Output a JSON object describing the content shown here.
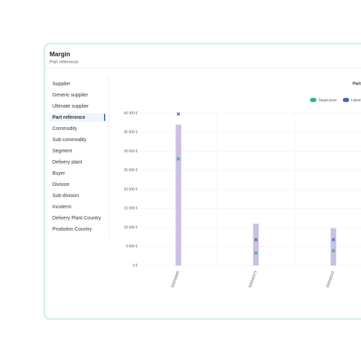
{
  "header": {
    "title": "Margin",
    "subtitle": "Part reference"
  },
  "menu": {
    "items": [
      "Supplier",
      "Generic supplier",
      "Ultimate supplier",
      "Part reference",
      "Commodity",
      "Sub-commodity",
      "Segment",
      "Delivery plant",
      "Buyer",
      "Division",
      "Sub-division",
      "Incoterm",
      "Delivery Plant Country",
      "Prodution Country"
    ],
    "selected": 3
  },
  "chart_data": {
    "type": "bar",
    "title": "Part",
    "categories": [
      "500256905",
      "500240373",
      "500260522"
    ],
    "series": [
      {
        "color": "#cbbfe2",
        "values": [
          37000,
          11000,
          9800
        ]
      },
      {
        "name": "Target price",
        "color": "#2fb57a",
        "marker": "x",
        "values": [
          28000,
          3300,
          3900
        ]
      },
      {
        "name": "Latest",
        "color": "#4766b8",
        "marker": "x",
        "values": [
          39800,
          6800,
          6800
        ]
      }
    ],
    "ylim": [
      0,
      40000
    ],
    "yticks": [
      {
        "value": 0,
        "label": "0 €"
      },
      {
        "value": 5000,
        "label": "5 000 €"
      },
      {
        "value": 10000,
        "label": "10 000 €"
      },
      {
        "value": 15000,
        "label": "15 000 €"
      },
      {
        "value": 20000,
        "label": "20 000 €"
      },
      {
        "value": 25000,
        "label": "25 000 €"
      },
      {
        "value": 30000,
        "label": "30 000 €"
      },
      {
        "value": 35000,
        "label": "35 000 €"
      },
      {
        "value": 40000,
        "label": "40 000 €"
      }
    ],
    "grid": true
  }
}
